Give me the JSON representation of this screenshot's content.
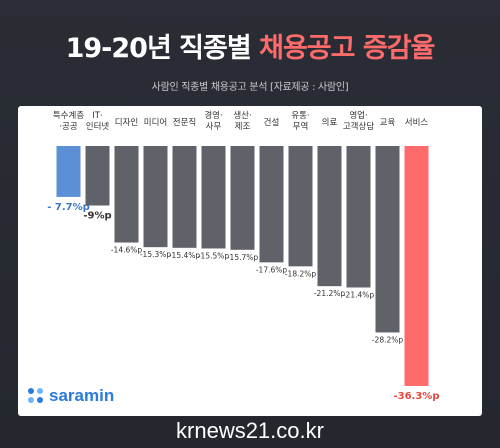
{
  "header": {
    "title_main": "19-20년 직종별 ",
    "title_accent": "채용공고 증감율",
    "subtitle": "사람인 직종별 채용공고 분석 [자료제공 : 사람인]"
  },
  "logo": {
    "text": "saramin"
  },
  "watermark": "krnews21.co.kr",
  "colors": {
    "default_bar": "#5f6268",
    "highlight_low": "#5b8fd6",
    "highlight_high": "#ff6b6b",
    "low_label": "#3a78c8",
    "high_label": "#e2473d",
    "background": "#2a2d35"
  },
  "chart_data": {
    "type": "bar",
    "orientation": "vertical-negative",
    "categories": [
      [
        "특수계층",
        "·공공"
      ],
      [
        "IT·",
        "인터넷"
      ],
      [
        "디자인"
      ],
      [
        "미디어"
      ],
      [
        "전문직"
      ],
      [
        "경영·",
        "사무"
      ],
      [
        "생산·",
        "제조"
      ],
      [
        "건설"
      ],
      [
        "유통·",
        "무역"
      ],
      [
        "의료"
      ],
      [
        "영업·",
        "고객상담"
      ],
      [
        "교육"
      ],
      [
        "서비스"
      ]
    ],
    "values": [
      -7.7,
      -9,
      -14.6,
      -15.3,
      -15.4,
      -15.5,
      -15.7,
      -17.6,
      -18.2,
      -21.2,
      -21.4,
      -28.2,
      -36.3
    ],
    "value_labels": [
      "- 7.7%p",
      "-9%p",
      "-14.6%p",
      "-15.3%p",
      "-15.4%p",
      "-15.5%p",
      "-15.7%p",
      "-17.6%p",
      "-18.2%p",
      "-21.2%p",
      "-21.4%p",
      "-28.2%p",
      "-36.3%p"
    ],
    "highlight": {
      "0": "low",
      "12": "high"
    },
    "ylim": [
      -36.3,
      0
    ]
  }
}
